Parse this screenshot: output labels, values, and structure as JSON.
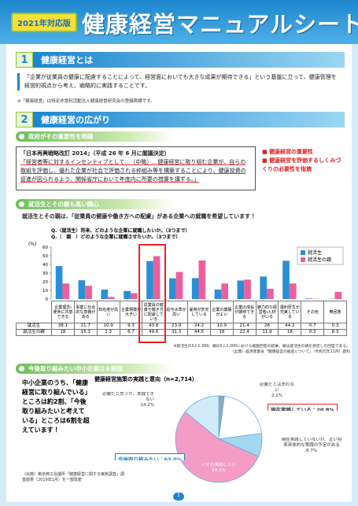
{
  "header": {
    "badge": "2021年対応版",
    "title": "健康経営マニュアルシート"
  },
  "section1": {
    "number": "1",
    "title": "健康経営とは",
    "text": "「企業が従業員の健康に配慮することによって、経営面においても大きな成果が期待できる」という基盤に立って、健康管理を経営的視点から考え、戦略的に実践することです。",
    "note": "※「健康経営」は特定非営利活動法人健康経営研究会の登録商標です。"
  },
  "section2": {
    "number": "2",
    "title": "健康経営の広がり",
    "sub1": {
      "title": "政府がその重要性を明確",
      "box_title": "「日本再興戦略改訂 2014」（平成 26 年 6 月に閣議決定）",
      "box_text": "「経営者等に対するインセンティブとして…（中略）…健康経営に取り組む企業が、自らの取組を評価し、優れた企業が社会で評価される枠組み等を構築することにより、健康投資の促進が図られるよう、関係省庁において年度内に所要の措置を講ずる。」",
      "points": [
        "健康経営の重要性",
        "健康経営を評価するしくみづくりの必要性を指摘"
      ]
    },
    "sub2": {
      "title": "就活生とその親も高い関心",
      "text": "就活生とその親は、「従業員の健康や働き方への配慮」がある企業への就職を希望しています！",
      "questions": [
        "Q.（就活生）将来、どのような企業に就職したいか。（3つまで）",
        "Q.（　親　）どのような企業に就職させたいか。（3つまで）"
      ],
      "notes": [
        "※就活生の0人1,399、親の0人1,000における複数回答の結果。親は就活生の親を想定した回答である。",
        "（出典）経済産業省「健康経営の推進について」（令和元年11月）資料"
      ]
    },
    "sub3": {
      "title": "今後取り組みたい中小企業は６割強",
      "text": "中小企業のうち、「健康経営に取り組んでいる」ところは約2割、「今後取り組みたいと考えている」ところは6割を超えています！",
      "source": "（出典）東京商工会議所「健康経営に関する実態調査」調査結果（2019年1月）を一部改変"
    }
  },
  "page_number": "1",
  "chart_data": [
    {
      "type": "bar",
      "y_label": "(%)",
      "categories": [
        "企業理念・使命に共感できる",
        "事業に社会的な意義がある",
        "知名度が高い",
        "企業規模が大きい",
        "従業員の健康や働き方に配慮している",
        "給与水準が高い",
        "雇用が安定している",
        "企業の業績がよい",
        "企業の成長が期待できる",
        "魅力的な経営者・人材がいる",
        "福利厚生が充実している",
        "その他",
        "無回答"
      ],
      "series": [
        {
          "name": "就活生",
          "color": "#2a8fd6",
          "values": [
            38.1,
            21.7,
            10.9,
            9.3,
            43.8,
            23.9,
            24.2,
            10.9,
            21.4,
            26,
            44.2,
            0.7,
            0.3
          ]
        },
        {
          "name": "就活生の親",
          "color": "#ec5f9c",
          "values": [
            18,
            15.3,
            2.3,
            6.7,
            49.6,
            31.3,
            44.5,
            18,
            22.4,
            11.9,
            18,
            0.3,
            8.3
          ]
        }
      ],
      "ylim": [
        0,
        60
      ],
      "yticks": [
        0,
        10,
        20,
        30,
        40,
        50,
        60
      ],
      "legend": "upper right"
    },
    {
      "type": "pie",
      "title": "健康経営施策の実践と意向（n=2,714）",
      "categories": [
        "必要だとは思わない",
        "現在実践している",
        "現在実践していないが、近い将来具体的な実践の予定がある",
        "いずれ実践したい",
        "必要だと思うが、実践できない"
      ],
      "values": [
        2.1,
        20.8,
        8.7,
        54.3,
        14.2
      ],
      "value_labels": [
        "2.1%",
        "20.8%",
        "8.7%",
        "54.3%",
        "14.2%"
      ],
      "colors": [
        "#8ea9c2",
        "#ffffff",
        "#a5d6ef",
        "#f49cc6",
        "#d3ebf8"
      ],
      "annotations": [
        "現在実践している：20.8%",
        "今後取り組みたい：63.0%"
      ]
    }
  ]
}
